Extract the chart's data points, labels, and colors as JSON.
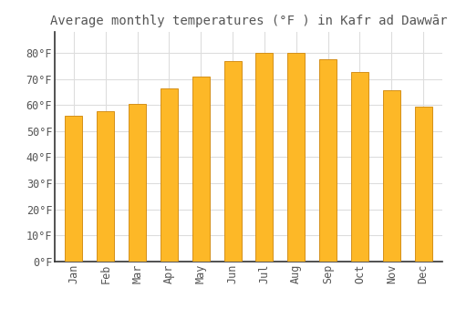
{
  "title": "Average monthly temperatures (°F ) in Kafr ad Dawwār",
  "months": [
    "Jan",
    "Feb",
    "Mar",
    "Apr",
    "May",
    "Jun",
    "Jul",
    "Aug",
    "Sep",
    "Oct",
    "Nov",
    "Dec"
  ],
  "values": [
    56,
    57.5,
    60.5,
    66.5,
    71,
    77,
    80,
    80,
    77.5,
    72.5,
    65.5,
    59.5
  ],
  "bar_color": "#FDB827",
  "bar_edge_color": "#D4901A",
  "background_color": "#FFFFFF",
  "grid_color": "#DDDDDD",
  "text_color": "#555555",
  "ylim": [
    0,
    88
  ],
  "yticks": [
    0,
    10,
    20,
    30,
    40,
    50,
    60,
    70,
    80
  ],
  "title_fontsize": 10,
  "tick_fontsize": 8.5,
  "bar_width": 0.55
}
